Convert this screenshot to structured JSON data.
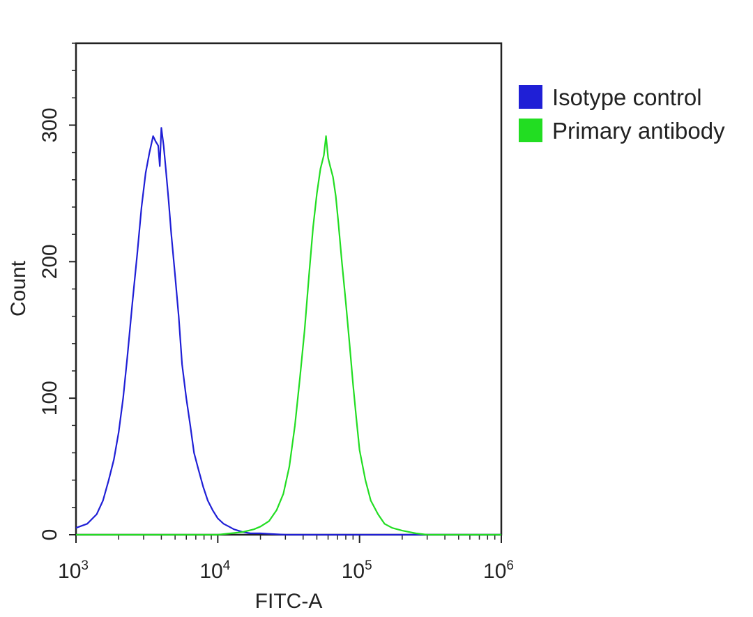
{
  "chart_data": {
    "type": "line",
    "title": "",
    "xlabel": "FITC-A",
    "ylabel": "Count",
    "x_scale": "log",
    "xlim": [
      1000,
      1000000
    ],
    "ylim": [
      0,
      360
    ],
    "x_ticks": [
      {
        "base": "10",
        "exp": "3"
      },
      {
        "base": "10",
        "exp": "4"
      },
      {
        "base": "10",
        "exp": "5"
      },
      {
        "base": "10",
        "exp": "6"
      }
    ],
    "y_ticks": [
      "0",
      "100",
      "200",
      "300"
    ],
    "grid": false,
    "legend_position": "right",
    "series": [
      {
        "name": "Isotype control",
        "color": "#1f1fd6",
        "x": [
          1000,
          1200,
          1400,
          1550,
          1700,
          1850,
          2000,
          2150,
          2300,
          2500,
          2700,
          2900,
          3100,
          3300,
          3500,
          3650,
          3800,
          3900,
          4000,
          4150,
          4300,
          4500,
          4700,
          5000,
          5300,
          5600,
          6000,
          6400,
          6800,
          7300,
          7900,
          8500,
          9200,
          10000,
          11000,
          12000,
          13000,
          15000,
          17000,
          20000,
          30000,
          60000,
          100000,
          1000000
        ],
        "y": [
          5,
          8,
          15,
          25,
          40,
          55,
          75,
          100,
          130,
          170,
          205,
          240,
          265,
          280,
          292,
          288,
          285,
          270,
          298,
          285,
          268,
          245,
          220,
          190,
          160,
          125,
          100,
          80,
          60,
          48,
          35,
          25,
          18,
          12,
          8,
          6,
          4,
          2,
          1,
          1,
          0,
          0,
          0,
          0
        ]
      },
      {
        "name": "Primary antibody",
        "color": "#22dd22",
        "x": [
          1000,
          10000,
          15000,
          18000,
          20000,
          23000,
          26000,
          29000,
          32000,
          35000,
          38000,
          41000,
          44000,
          47000,
          50000,
          53000,
          56000,
          58000,
          60000,
          62000,
          65000,
          68000,
          71000,
          75000,
          80000,
          85000,
          90000,
          95000,
          100000,
          110000,
          120000,
          135000,
          150000,
          170000,
          200000,
          250000,
          300000,
          400000,
          1000000
        ],
        "y": [
          0,
          0,
          2,
          4,
          6,
          10,
          18,
          30,
          50,
          80,
          115,
          150,
          190,
          225,
          250,
          268,
          278,
          292,
          276,
          270,
          262,
          248,
          228,
          200,
          170,
          140,
          110,
          85,
          62,
          40,
          25,
          15,
          8,
          5,
          3,
          1,
          0,
          0,
          0
        ]
      }
    ]
  }
}
